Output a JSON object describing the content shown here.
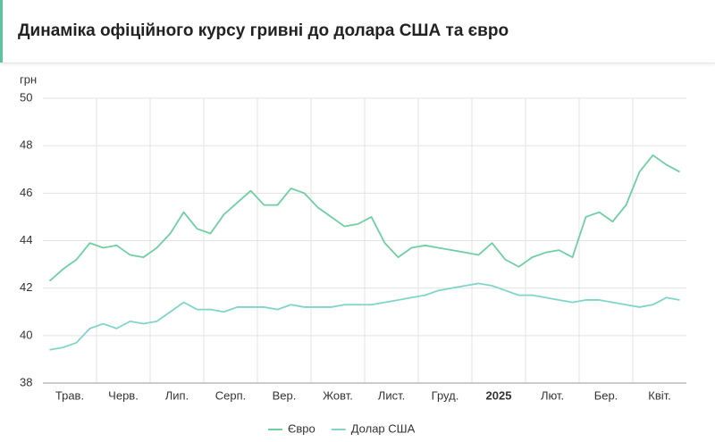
{
  "chart_data": {
    "type": "line",
    "title": "Динаміка офіційного курсу гривні до долара США та євро",
    "y_label": "грн",
    "categories": [
      "Трав.",
      null,
      null,
      null,
      "Черв.",
      null,
      null,
      null,
      "Лип.",
      null,
      null,
      null,
      "Серп.",
      null,
      null,
      null,
      "Вер.",
      null,
      null,
      null,
      "Жовт.",
      null,
      null,
      null,
      "Лист.",
      null,
      null,
      null,
      "Груд.",
      null,
      null,
      null,
      "2025",
      null,
      null,
      null,
      "Лют.",
      null,
      null,
      null,
      "Бер.",
      null,
      null,
      null,
      "Квіт.",
      null,
      null,
      null
    ],
    "series": [
      {
        "name": "Євро",
        "color": "#6fcfa3",
        "values": [
          42.3,
          42.8,
          43.2,
          43.9,
          43.7,
          43.8,
          43.4,
          43.3,
          43.7,
          44.3,
          45.2,
          44.5,
          44.3,
          45.1,
          45.6,
          46.1,
          45.5,
          45.5,
          46.2,
          46.0,
          45.4,
          45.0,
          44.6,
          44.7,
          45.0,
          43.9,
          43.3,
          43.7,
          43.8,
          43.7,
          43.6,
          43.5,
          43.4,
          43.9,
          43.2,
          42.9,
          43.3,
          43.5,
          43.6,
          43.3,
          45.0,
          45.2,
          44.8,
          45.5,
          46.9,
          47.6,
          47.2,
          46.9
        ]
      },
      {
        "name": "Долар США",
        "color": "#7fd6c8",
        "values": [
          39.4,
          39.5,
          39.7,
          40.3,
          40.5,
          40.3,
          40.6,
          40.5,
          40.6,
          41.0,
          41.4,
          41.1,
          41.1,
          41.0,
          41.2,
          41.2,
          41.2,
          41.1,
          41.3,
          41.2,
          41.2,
          41.2,
          41.3,
          41.3,
          41.3,
          41.4,
          41.5,
          41.6,
          41.7,
          41.9,
          42.0,
          42.1,
          42.2,
          42.1,
          41.9,
          41.7,
          41.7,
          41.6,
          41.5,
          41.4,
          41.5,
          41.5,
          41.4,
          41.3,
          41.2,
          41.3,
          41.6,
          41.5
        ]
      }
    ],
    "ylim": [
      38,
      50
    ],
    "yticks": [
      38,
      40,
      42,
      44,
      46,
      48,
      50
    ],
    "grid": true
  }
}
